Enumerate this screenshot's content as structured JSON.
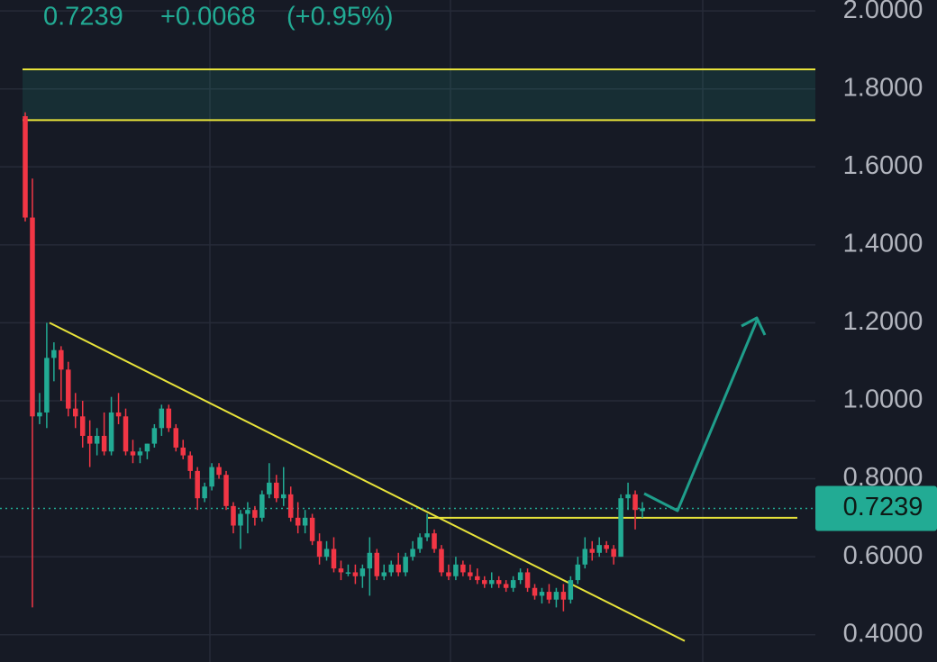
{
  "chart_data": {
    "type": "candlestick",
    "last_price": 0.7239,
    "change": {
      "value": 0.0068,
      "label": "+0.0068"
    },
    "change_percent": {
      "value": 0.95,
      "label": "(+0.95%)"
    },
    "ylim": [
      0.33,
      2.028
    ],
    "yticks": [
      {
        "value": 0.4,
        "label": "0.4000"
      },
      {
        "value": 0.6,
        "label": "0.6000"
      },
      {
        "value": 0.8,
        "label": "0.8000"
      },
      {
        "value": 1.0,
        "label": "1.0000"
      },
      {
        "value": 1.2,
        "label": "1.2000"
      },
      {
        "value": 1.4,
        "label": "1.4000"
      },
      {
        "value": 1.6,
        "label": "1.6000"
      },
      {
        "value": 1.8,
        "label": "1.8000"
      },
      {
        "value": 2.0,
        "label": "2.0000"
      }
    ],
    "grid": true,
    "up_color": "#22ab94",
    "down_color": "#f23645",
    "line_color": "#e8e33a",
    "resistance_zone": [
      1.72,
      1.85
    ],
    "support_level": 0.7,
    "trendline": [
      1.2,
      0.384
    ],
    "candles": [
      [
        1.73,
        1.74,
        1.46,
        1.47
      ],
      [
        1.47,
        1.57,
        0.47,
        0.96
      ],
      [
        0.96,
        1.02,
        0.94,
        0.97
      ],
      [
        0.97,
        1.2,
        0.93,
        1.11
      ],
      [
        1.11,
        1.15,
        1.05,
        1.13
      ],
      [
        1.13,
        1.14,
        1.0,
        1.08
      ],
      [
        1.08,
        1.1,
        0.96,
        0.98
      ],
      [
        0.98,
        1.02,
        0.93,
        0.96
      ],
      [
        0.96,
        1.0,
        0.88,
        0.91
      ],
      [
        0.91,
        0.95,
        0.83,
        0.89
      ],
      [
        0.89,
        0.93,
        0.86,
        0.91
      ],
      [
        0.91,
        0.97,
        0.86,
        0.87
      ],
      [
        0.87,
        1.01,
        0.86,
        0.97
      ],
      [
        0.97,
        1.02,
        0.94,
        0.96
      ],
      [
        0.96,
        0.98,
        0.86,
        0.87
      ],
      [
        0.87,
        0.9,
        0.84,
        0.86
      ],
      [
        0.86,
        0.88,
        0.84,
        0.87
      ],
      [
        0.87,
        0.89,
        0.85,
        0.89
      ],
      [
        0.89,
        0.94,
        0.88,
        0.93
      ],
      [
        0.93,
        0.99,
        0.91,
        0.98
      ],
      [
        0.98,
        0.99,
        0.92,
        0.93
      ],
      [
        0.93,
        0.94,
        0.87,
        0.88
      ],
      [
        0.88,
        0.9,
        0.85,
        0.86
      ],
      [
        0.86,
        0.87,
        0.8,
        0.82
      ],
      [
        0.82,
        0.83,
        0.72,
        0.75
      ],
      [
        0.75,
        0.79,
        0.74,
        0.78
      ],
      [
        0.78,
        0.84,
        0.77,
        0.83
      ],
      [
        0.83,
        0.84,
        0.8,
        0.81
      ],
      [
        0.81,
        0.82,
        0.72,
        0.73
      ],
      [
        0.73,
        0.74,
        0.66,
        0.68
      ],
      [
        0.68,
        0.72,
        0.62,
        0.71
      ],
      [
        0.71,
        0.74,
        0.66,
        0.72
      ],
      [
        0.72,
        0.73,
        0.68,
        0.7
      ],
      [
        0.7,
        0.77,
        0.69,
        0.76
      ],
      [
        0.76,
        0.84,
        0.75,
        0.79
      ],
      [
        0.79,
        0.81,
        0.74,
        0.75
      ],
      [
        0.75,
        0.83,
        0.73,
        0.76
      ],
      [
        0.76,
        0.78,
        0.69,
        0.7
      ],
      [
        0.7,
        0.74,
        0.66,
        0.68
      ],
      [
        0.68,
        0.72,
        0.66,
        0.7
      ],
      [
        0.7,
        0.71,
        0.63,
        0.64
      ],
      [
        0.64,
        0.66,
        0.58,
        0.6
      ],
      [
        0.6,
        0.64,
        0.59,
        0.62
      ],
      [
        0.62,
        0.65,
        0.56,
        0.57
      ],
      [
        0.57,
        0.59,
        0.54,
        0.56
      ],
      [
        0.56,
        0.58,
        0.55,
        0.56
      ],
      [
        0.56,
        0.58,
        0.53,
        0.55
      ],
      [
        0.55,
        0.58,
        0.52,
        0.57
      ],
      [
        0.57,
        0.65,
        0.5,
        0.61
      ],
      [
        0.61,
        0.62,
        0.54,
        0.55
      ],
      [
        0.55,
        0.58,
        0.54,
        0.56
      ],
      [
        0.56,
        0.59,
        0.55,
        0.58
      ],
      [
        0.58,
        0.61,
        0.55,
        0.56
      ],
      [
        0.56,
        0.61,
        0.55,
        0.6
      ],
      [
        0.6,
        0.64,
        0.59,
        0.62
      ],
      [
        0.62,
        0.66,
        0.61,
        0.65
      ],
      [
        0.65,
        0.71,
        0.64,
        0.66
      ],
      [
        0.66,
        0.67,
        0.61,
        0.62
      ],
      [
        0.62,
        0.63,
        0.55,
        0.56
      ],
      [
        0.56,
        0.58,
        0.54,
        0.55
      ],
      [
        0.55,
        0.6,
        0.54,
        0.58
      ],
      [
        0.58,
        0.59,
        0.55,
        0.56
      ],
      [
        0.56,
        0.58,
        0.54,
        0.55
      ],
      [
        0.55,
        0.57,
        0.53,
        0.54
      ],
      [
        0.54,
        0.55,
        0.52,
        0.53
      ],
      [
        0.53,
        0.56,
        0.52,
        0.54
      ],
      [
        0.54,
        0.55,
        0.52,
        0.53
      ],
      [
        0.53,
        0.54,
        0.51,
        0.52
      ],
      [
        0.52,
        0.55,
        0.51,
        0.54
      ],
      [
        0.54,
        0.57,
        0.53,
        0.56
      ],
      [
        0.56,
        0.57,
        0.51,
        0.52
      ],
      [
        0.52,
        0.53,
        0.49,
        0.5
      ],
      [
        0.5,
        0.52,
        0.48,
        0.51
      ],
      [
        0.51,
        0.53,
        0.48,
        0.49
      ],
      [
        0.49,
        0.52,
        0.47,
        0.51
      ],
      [
        0.51,
        0.53,
        0.46,
        0.49
      ],
      [
        0.49,
        0.55,
        0.48,
        0.54
      ],
      [
        0.54,
        0.6,
        0.53,
        0.58
      ],
      [
        0.58,
        0.65,
        0.57,
        0.62
      ],
      [
        0.62,
        0.64,
        0.59,
        0.61
      ],
      [
        0.61,
        0.65,
        0.6,
        0.63
      ],
      [
        0.63,
        0.64,
        0.61,
        0.62
      ],
      [
        0.62,
        0.63,
        0.58,
        0.6
      ],
      [
        0.6,
        0.76,
        0.6,
        0.75
      ],
      [
        0.75,
        0.79,
        0.72,
        0.76
      ],
      [
        0.76,
        0.77,
        0.67,
        0.72
      ],
      [
        0.717,
        0.74,
        0.7,
        0.7239
      ]
    ]
  }
}
